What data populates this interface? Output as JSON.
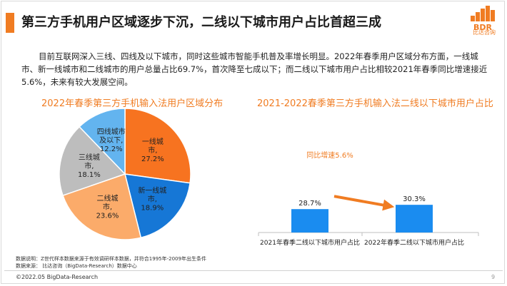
{
  "title": "第三方手机用户区域逐步下沉，二线以下城市用户占比首超三成",
  "logo": {
    "mark": "BDR",
    "caption": "比达咨询"
  },
  "description": "目前互联网深入三线、四线及以下城市，同时这些城市智能手机普及率增长明显。2022年春季用户区域分布方面，一线城市、新一线城市和二线城市的用户总量占比69.7%，首次降至七成以下；而二线以下城市用户占比相较2021年春季同比增速接近5.6%，未来有较大发展空间。",
  "notes": {
    "line1": "数据说明：Z世代样本数据来源于有效调研样本数据，并符合1995年-2009年出生条件",
    "line2": "数据来源：  比达咨询（BigData-Research）数据中心"
  },
  "footer": "©2022.05 BigData-Research",
  "page_number": "9",
  "chart_data": [
    {
      "type": "pie",
      "title": "2022年春季第三方手机输入法用户区域分布",
      "slices": [
        {
          "label_lines": [
            "一线城",
            "市,"
          ],
          "value": 27.2,
          "value_label": "27.2%",
          "color": "#f77320"
        },
        {
          "label_lines": [
            "新一线城",
            "市,"
          ],
          "value": 18.9,
          "value_label": "18.9%",
          "color": "#1677d6"
        },
        {
          "label_lines": [
            "二线城",
            "市,"
          ],
          "value": 23.6,
          "value_label": "23.6%",
          "color": "#fbab6a"
        },
        {
          "label_lines": [
            "三线城",
            "市,"
          ],
          "value": 18.1,
          "value_label": "18.1%",
          "color": "#bdbdbd"
        },
        {
          "label_lines": [
            "四线城市",
            "及以下,"
          ],
          "value": 12.2,
          "value_label": "12.2%",
          "color": "#63b4ef"
        }
      ]
    },
    {
      "type": "bar",
      "title": "2021-2022春季第三方手机输入法二线以下城市用户占比",
      "categories": [
        "2021年春季二线以下城市用户占比",
        "2022年春季二线以下城市用户占比"
      ],
      "values": [
        28.7,
        30.3
      ],
      "value_labels": [
        "28.7%",
        "30.3%"
      ],
      "bar_color": "#1a8cf0",
      "annotation": "同比增速5.6%",
      "annotation_color": "#f07c22"
    }
  ]
}
